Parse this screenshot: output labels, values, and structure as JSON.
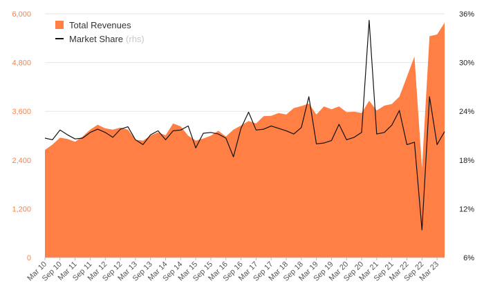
{
  "chart_data": {
    "type": "area+line",
    "title": "",
    "xlabel": "",
    "ylabel": "",
    "ylim": [
      0,
      6000
    ],
    "y2lim": [
      6,
      36
    ],
    "y_ticks": [
      "0",
      "1,200",
      "2,400",
      "3,600",
      "4,800",
      "6,000"
    ],
    "y2_ticks": [
      "6%",
      "12%",
      "18%",
      "24%",
      "30%",
      "36%"
    ],
    "x_tick_labels": [
      "Mar 10",
      "Sep 10",
      "Mar 11",
      "Sep 11",
      "Mar 12",
      "Sep 12",
      "Mar 13",
      "Sep 13",
      "Mar 14",
      "Sep 14",
      "Mar 15",
      "Sep 15",
      "Mar 16",
      "Sep 16",
      "Mar 17",
      "Sep 17",
      "Mar 18",
      "Sep 18",
      "Mar 19",
      "Sep 19",
      "Mar 20",
      "Sep 20",
      "Mar 21",
      "Sep 21",
      "Mar 22",
      "Sep 22",
      "Mar 23"
    ],
    "x": [
      "Mar 10",
      "Jun 10",
      "Sep 10",
      "Dec 10",
      "Mar 11",
      "Jun 11",
      "Sep 11",
      "Dec 11",
      "Mar 12",
      "Jun 12",
      "Sep 12",
      "Dec 12",
      "Mar 13",
      "Jun 13",
      "Sep 13",
      "Dec 13",
      "Mar 14",
      "Jun 14",
      "Sep 14",
      "Dec 14",
      "Mar 15",
      "Jun 15",
      "Sep 15",
      "Dec 15",
      "Mar 16",
      "Jun 16",
      "Sep 16",
      "Dec 16",
      "Mar 17",
      "Jun 17",
      "Sep 17",
      "Dec 17",
      "Mar 18",
      "Jun 18",
      "Sep 18",
      "Dec 18",
      "Mar 19",
      "Jun 19",
      "Sep 19",
      "Dec 19",
      "Mar 20",
      "Jun 20",
      "Sep 20",
      "Dec 20",
      "Mar 21",
      "Jun 21",
      "Sep 21",
      "Dec 21",
      "Mar 22",
      "Jun 22",
      "Sep 22",
      "Dec 22",
      "Mar 23",
      "Jun 23"
    ],
    "series": [
      {
        "name": "Total Revenues",
        "axis": "left",
        "type": "area",
        "color": "#ff7f45",
        "values": [
          2650,
          2780,
          2950,
          2920,
          2850,
          2980,
          3150,
          3270,
          3180,
          3150,
          3200,
          3150,
          2900,
          2880,
          3000,
          3080,
          3010,
          3300,
          3230,
          3000,
          2880,
          2930,
          3000,
          3120,
          2980,
          3150,
          3250,
          3360,
          3300,
          3480,
          3490,
          3560,
          3520,
          3680,
          3730,
          3790,
          3520,
          3720,
          3650,
          3720,
          3580,
          3590,
          3560,
          3860,
          3620,
          3740,
          3780,
          3960,
          4450,
          4950,
          2200,
          5450,
          5490,
          5780
        ]
      },
      {
        "name": "Market Share",
        "name_suffix": "(rhs)",
        "axis": "right",
        "type": "line",
        "color": "#111111",
        "values": [
          20.7,
          20.5,
          21.7,
          21.1,
          20.6,
          20.7,
          21.4,
          21.8,
          21.4,
          20.8,
          21.8,
          22.1,
          20.5,
          19.9,
          21.1,
          21.6,
          20.5,
          21.6,
          21.7,
          22.2,
          19.5,
          21.3,
          21.4,
          21.2,
          20.7,
          18.4,
          21.9,
          23.9,
          21.7,
          21.8,
          22.2,
          21.9,
          21.6,
          21.2,
          22.0,
          25.8,
          20.0,
          20.1,
          20.4,
          22.4,
          20.5,
          20.8,
          21.4,
          35.2,
          21.2,
          21.4,
          22.3,
          24.1,
          19.9,
          20.2,
          9.4,
          25.8,
          19.9,
          21.5
        ]
      }
    ],
    "grid": true,
    "legend": "top-left"
  }
}
